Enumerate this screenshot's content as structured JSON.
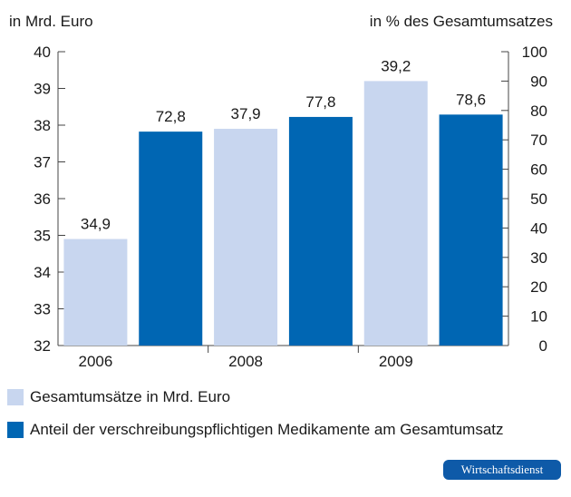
{
  "chart_data": {
    "type": "bar",
    "categories": [
      "2006",
      "",
      "2008",
      "",
      "2009",
      ""
    ],
    "series": [
      {
        "name": "Gesamtumsätze in Mrd. Euro",
        "axis": "left",
        "color": "#c8d6ef",
        "values": [
          34.9,
          null,
          37.9,
          null,
          39.2,
          null
        ],
        "labels": [
          "34,9",
          "",
          "37,9",
          "",
          "39,2",
          ""
        ]
      },
      {
        "name": "Anteil der verschreibungspflichtigen Medikamente am Gesamtumsatz",
        "axis": "right",
        "color": "#0066b3",
        "values": [
          null,
          72.8,
          null,
          77.8,
          null,
          78.6
        ],
        "labels": [
          "",
          "72,8",
          "",
          "77,8",
          "",
          "78,6"
        ]
      }
    ],
    "ylabel_left": "in Mrd. Euro",
    "ylabel_right": "in % des Gesamtumsatzes",
    "ylim_left": [
      32,
      40
    ],
    "ylim_right": [
      0,
      100
    ],
    "yticks_left": [
      "32",
      "33",
      "34",
      "35",
      "36",
      "37",
      "38",
      "39",
      "40"
    ],
    "yticks_right": [
      "0",
      "10",
      "20",
      "30",
      "40",
      "50",
      "60",
      "70",
      "80",
      "90",
      "100"
    ],
    "xtick_labels": [
      "2006",
      "2008",
      "2009"
    ],
    "grid": false,
    "legend_position": "bottom"
  },
  "logo_text": "Wirtschaftsdienst"
}
